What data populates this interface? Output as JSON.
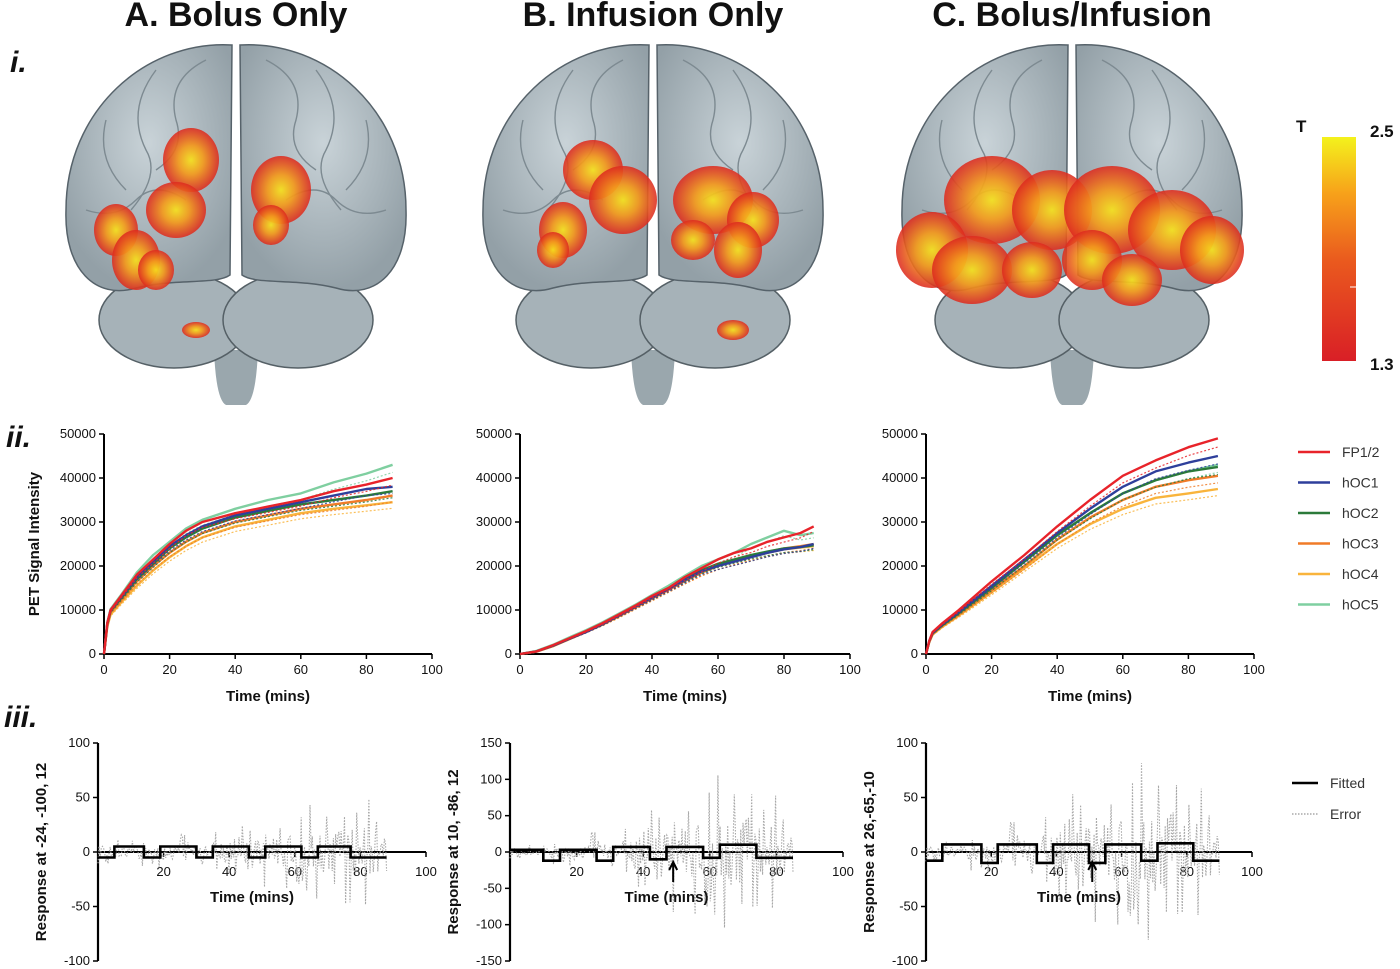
{
  "panel_titles": [
    "A. Bolus Only",
    "B. Infusion Only",
    "C. Bolus/Infusion"
  ],
  "row_labels": [
    "i.",
    "ii.",
    "iii."
  ],
  "colors": {
    "FP1/2": "#e8232a",
    "hOC1": "#2e3f9b",
    "hOC2": "#2b7a3a",
    "hOC3": "#f07b28",
    "hOC4": "#f9b43c",
    "hOC5": "#7fcfa0",
    "fitted": "#000000",
    "error": "#a8a8a8",
    "brain": "#b9c4c9"
  },
  "colorbar": {
    "label": "T",
    "max": "2.5",
    "min": "1.3"
  },
  "chart_data": [
    {
      "type": "line",
      "panel": "A-ii",
      "xlabel": "Time (mins)",
      "ylabel": "PET  Signal Intensity",
      "xlim": [
        0,
        100
      ],
      "ylim": [
        0,
        50000
      ],
      "xticks": [
        "0",
        "20",
        "40",
        "60",
        "80",
        "100"
      ],
      "yticks": [
        "0",
        "10000",
        "20000",
        "30000",
        "40000",
        "50000"
      ],
      "x": [
        0,
        1,
        2,
        5,
        10,
        15,
        20,
        25,
        30,
        40,
        50,
        60,
        70,
        80,
        88
      ],
      "series": [
        {
          "name": "FP1/2",
          "values": [
            0,
            7000,
            10000,
            13000,
            18000,
            21500,
            25000,
            28000,
            30000,
            32000,
            33500,
            35000,
            37000,
            38500,
            40000
          ]
        },
        {
          "name": "hOC1",
          "values": [
            0,
            7000,
            10000,
            12800,
            17500,
            21000,
            24500,
            27000,
            29000,
            31500,
            33000,
            34500,
            36000,
            37500,
            38000
          ]
        },
        {
          "name": "hOC2",
          "values": [
            0,
            6800,
            9800,
            12500,
            17000,
            20500,
            24000,
            26500,
            28500,
            31000,
            32500,
            34000,
            35000,
            36000,
            37000
          ]
        },
        {
          "name": "hOC3",
          "values": [
            0,
            6500,
            9500,
            12000,
            16500,
            20000,
            23000,
            25500,
            27500,
            30000,
            31500,
            33000,
            34000,
            35000,
            36000
          ]
        },
        {
          "name": "hOC4",
          "values": [
            0,
            6200,
            9000,
            11500,
            15500,
            19000,
            22000,
            24500,
            26500,
            29000,
            30500,
            32000,
            33000,
            33800,
            34500
          ]
        },
        {
          "name": "hOC5",
          "values": [
            0,
            7200,
            10200,
            13200,
            18500,
            22500,
            25500,
            28500,
            30500,
            33000,
            35000,
            36500,
            39000,
            41000,
            43000
          ]
        }
      ]
    },
    {
      "type": "line",
      "panel": "B-ii",
      "xlabel": "Time (mins)",
      "ylabel": "",
      "xlim": [
        0,
        100
      ],
      "ylim": [
        0,
        50000
      ],
      "xticks": [
        "0",
        "20",
        "40",
        "60",
        "80",
        "100"
      ],
      "yticks": [
        "0",
        "10000",
        "20000",
        "30000",
        "40000",
        "50000"
      ],
      "x": [
        0,
        5,
        10,
        15,
        20,
        25,
        30,
        35,
        40,
        45,
        50,
        55,
        60,
        65,
        70,
        75,
        80,
        85,
        89
      ],
      "series": [
        {
          "name": "FP1/2",
          "values": [
            0,
            600,
            2000,
            3600,
            5200,
            7000,
            9000,
            11000,
            13200,
            15000,
            17500,
            19500,
            21500,
            23000,
            24000,
            25500,
            26500,
            27500,
            29000
          ]
        },
        {
          "name": "hOC1",
          "values": [
            0,
            600,
            1900,
            3500,
            5000,
            6800,
            8800,
            10800,
            12800,
            14800,
            16800,
            18800,
            20000,
            21000,
            22000,
            23000,
            23800,
            24300,
            25000
          ]
        },
        {
          "name": "hOC2",
          "values": [
            0,
            600,
            1900,
            3500,
            5100,
            6800,
            8800,
            10800,
            12800,
            14800,
            17000,
            19000,
            20500,
            21500,
            22500,
            23300,
            24000,
            24300,
            24700
          ]
        },
        {
          "name": "hOC3",
          "values": [
            0,
            550,
            1800,
            3400,
            5000,
            6700,
            8600,
            10600,
            12600,
            14600,
            16600,
            18500,
            20000,
            21200,
            22200,
            23200,
            24000,
            24500,
            25000
          ]
        },
        {
          "name": "hOC4",
          "values": [
            0,
            550,
            1800,
            3400,
            5000,
            6700,
            8600,
            10600,
            12600,
            14600,
            16600,
            18500,
            20000,
            21000,
            22000,
            23000,
            23800,
            24200,
            24500
          ]
        },
        {
          "name": "hOC5",
          "values": [
            0,
            700,
            2100,
            3800,
            5400,
            7200,
            9200,
            11200,
            13400,
            15500,
            17800,
            20000,
            21500,
            23000,
            25000,
            26500,
            28000,
            27000,
            27500
          ]
        }
      ]
    },
    {
      "type": "line",
      "panel": "C-ii",
      "xlabel": "Time (mins)",
      "ylabel": "",
      "xlim": [
        0,
        100
      ],
      "ylim": [
        0,
        50000
      ],
      "xticks": [
        "0",
        "20",
        "40",
        "60",
        "80",
        "100"
      ],
      "yticks": [
        "0",
        "10000",
        "20000",
        "30000",
        "40000",
        "50000"
      ],
      "x": [
        0,
        1,
        2,
        5,
        10,
        20,
        30,
        40,
        50,
        60,
        70,
        80,
        89
      ],
      "series": [
        {
          "name": "FP1/2",
          "values": [
            0,
            3000,
            5000,
            7000,
            10000,
            16500,
            22500,
            29000,
            35000,
            40500,
            44000,
            47000,
            49000
          ]
        },
        {
          "name": "hOC1",
          "values": [
            0,
            3000,
            4800,
            6800,
            9600,
            15500,
            21500,
            27500,
            33000,
            38000,
            41500,
            43500,
            45000
          ]
        },
        {
          "name": "hOC2",
          "values": [
            0,
            2900,
            4700,
            6600,
            9300,
            15000,
            21000,
            27000,
            32000,
            36500,
            39500,
            41500,
            42500
          ]
        },
        {
          "name": "hOC3",
          "values": [
            0,
            2800,
            4600,
            6400,
            9000,
            14500,
            20000,
            26000,
            31000,
            35000,
            38000,
            39500,
            40500
          ]
        },
        {
          "name": "hOC4",
          "values": [
            0,
            2700,
            4400,
            6200,
            8700,
            14000,
            19500,
            25000,
            29500,
            33000,
            35500,
            36500,
            37500
          ]
        },
        {
          "name": "hOC5",
          "values": [
            0,
            2900,
            4700,
            6600,
            9400,
            15000,
            21000,
            27000,
            32000,
            36500,
            39500,
            41500,
            43000
          ]
        }
      ]
    },
    {
      "type": "line",
      "panel": "A-iii",
      "xlabel": "Time (mins)",
      "ylabel": "Response at -24, -100, 12",
      "xlim": [
        0,
        100
      ],
      "ylim": [
        -100,
        100
      ],
      "xticks": [
        "20",
        "40",
        "60",
        "80",
        "100"
      ],
      "yticks": [
        "-100",
        "-50",
        "0",
        "50",
        "100"
      ],
      "fitted": {
        "x": [
          0,
          5,
          5,
          14,
          14,
          19,
          19,
          30,
          30,
          35,
          35,
          46,
          46,
          51,
          51,
          62,
          62,
          67,
          67,
          77,
          77,
          88
        ],
        "y": [
          -5,
          -5,
          5,
          5,
          -5,
          -5,
          5,
          5,
          -5,
          -5,
          5,
          5,
          -5,
          -5,
          5,
          5,
          -5,
          -5,
          5,
          5,
          -5,
          -5
        ]
      },
      "error_amplitude": [
        12,
        15,
        20,
        25,
        35,
        45,
        50
      ]
    },
    {
      "type": "line",
      "panel": "B-iii",
      "xlabel": "Time (mins)",
      "ylabel": "Response at 10, -86, 12",
      "xlim": [
        0,
        100
      ],
      "ylim": [
        -150,
        150
      ],
      "xticks": [
        "20",
        "40",
        "60",
        "80",
        "100"
      ],
      "yticks": [
        "-150",
        "-100",
        "-50",
        "0",
        "50",
        "100",
        "150"
      ],
      "fitted": {
        "x": [
          0,
          10,
          10,
          15,
          15,
          26,
          26,
          31,
          31,
          42,
          42,
          47,
          47,
          58,
          58,
          63,
          63,
          74,
          74,
          85
        ],
        "y": [
          3,
          3,
          -12,
          -12,
          3,
          3,
          -12,
          -12,
          7,
          7,
          -10,
          -10,
          7,
          7,
          -8,
          -8,
          10,
          10,
          -8,
          -8
        ]
      },
      "error_amplitude": [
        10,
        20,
        35,
        60,
        90,
        110,
        80
      ],
      "arrow_x": 49
    },
    {
      "type": "line",
      "panel": "C-iii",
      "xlabel": "Time (mins)",
      "ylabel": "Response at 26,-65,-10",
      "xlim": [
        0,
        100
      ],
      "ylim": [
        -100,
        100
      ],
      "xticks": [
        "20",
        "40",
        "60",
        "80",
        "100"
      ],
      "yticks": [
        "-100",
        "-50",
        "0",
        "50",
        "100"
      ],
      "fitted": {
        "x": [
          0,
          5,
          5,
          17,
          17,
          22,
          22,
          34,
          34,
          39,
          39,
          50,
          50,
          55,
          55,
          66,
          66,
          71,
          71,
          82,
          82,
          90
        ],
        "y": [
          -8,
          -8,
          7,
          7,
          -10,
          -10,
          7,
          7,
          -10,
          -10,
          7,
          7,
          -10,
          -10,
          7,
          7,
          -8,
          -8,
          8,
          8,
          -8,
          -8
        ]
      },
      "error_amplitude": [
        10,
        20,
        35,
        55,
        70,
        85,
        60
      ],
      "arrow_x": 51
    }
  ],
  "legend_ii": [
    "FP1/2",
    "hOC1",
    "hOC2",
    "hOC3",
    "hOC4",
    "hOC5"
  ],
  "legend_iii": [
    "Fitted",
    "Error"
  ]
}
